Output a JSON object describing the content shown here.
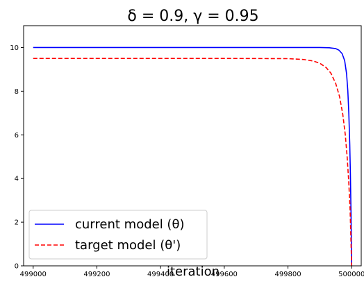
{
  "chart_data": {
    "type": "line",
    "title": "δ = 0.9, γ = 0.95",
    "xlabel": "iteration",
    "ylabel": "",
    "xlim": [
      498970,
      500030
    ],
    "ylim": [
      0,
      11
    ],
    "xticks": [
      499000,
      499200,
      499400,
      499600,
      499800,
      500000
    ],
    "yticks": [
      0,
      2,
      4,
      6,
      8,
      10
    ],
    "grid": false,
    "legend_position": "lower-left",
    "series": [
      {
        "name": "current model (θ)",
        "color": "#0000ff",
        "style": "solid",
        "x": [
          499000,
          499200,
          499400,
          499600,
          499800,
          499900,
          499930,
          499950,
          499960,
          499970,
          499978,
          499984,
          499988,
          499991,
          499994,
          499996,
          499998,
          500000
        ],
        "y": [
          10.0,
          10.0,
          10.0,
          10.0,
          10.0,
          10.0,
          9.99,
          9.95,
          9.88,
          9.72,
          9.4,
          8.8,
          8.0,
          7.0,
          5.6,
          4.2,
          2.4,
          0.0
        ]
      },
      {
        "name": "target model (θ')",
        "color": "#ff0000",
        "style": "dashed",
        "x": [
          499000,
          499200,
          499400,
          499600,
          499800,
          499850,
          499880,
          499900,
          499920,
          499935,
          499950,
          499962,
          499972,
          499980,
          499986,
          499991,
          499995,
          500000
        ],
        "y": [
          9.5,
          9.5,
          9.5,
          9.5,
          9.49,
          9.45,
          9.38,
          9.28,
          9.08,
          8.82,
          8.35,
          7.75,
          6.95,
          6.0,
          4.95,
          3.8,
          2.6,
          0.0
        ]
      }
    ]
  }
}
